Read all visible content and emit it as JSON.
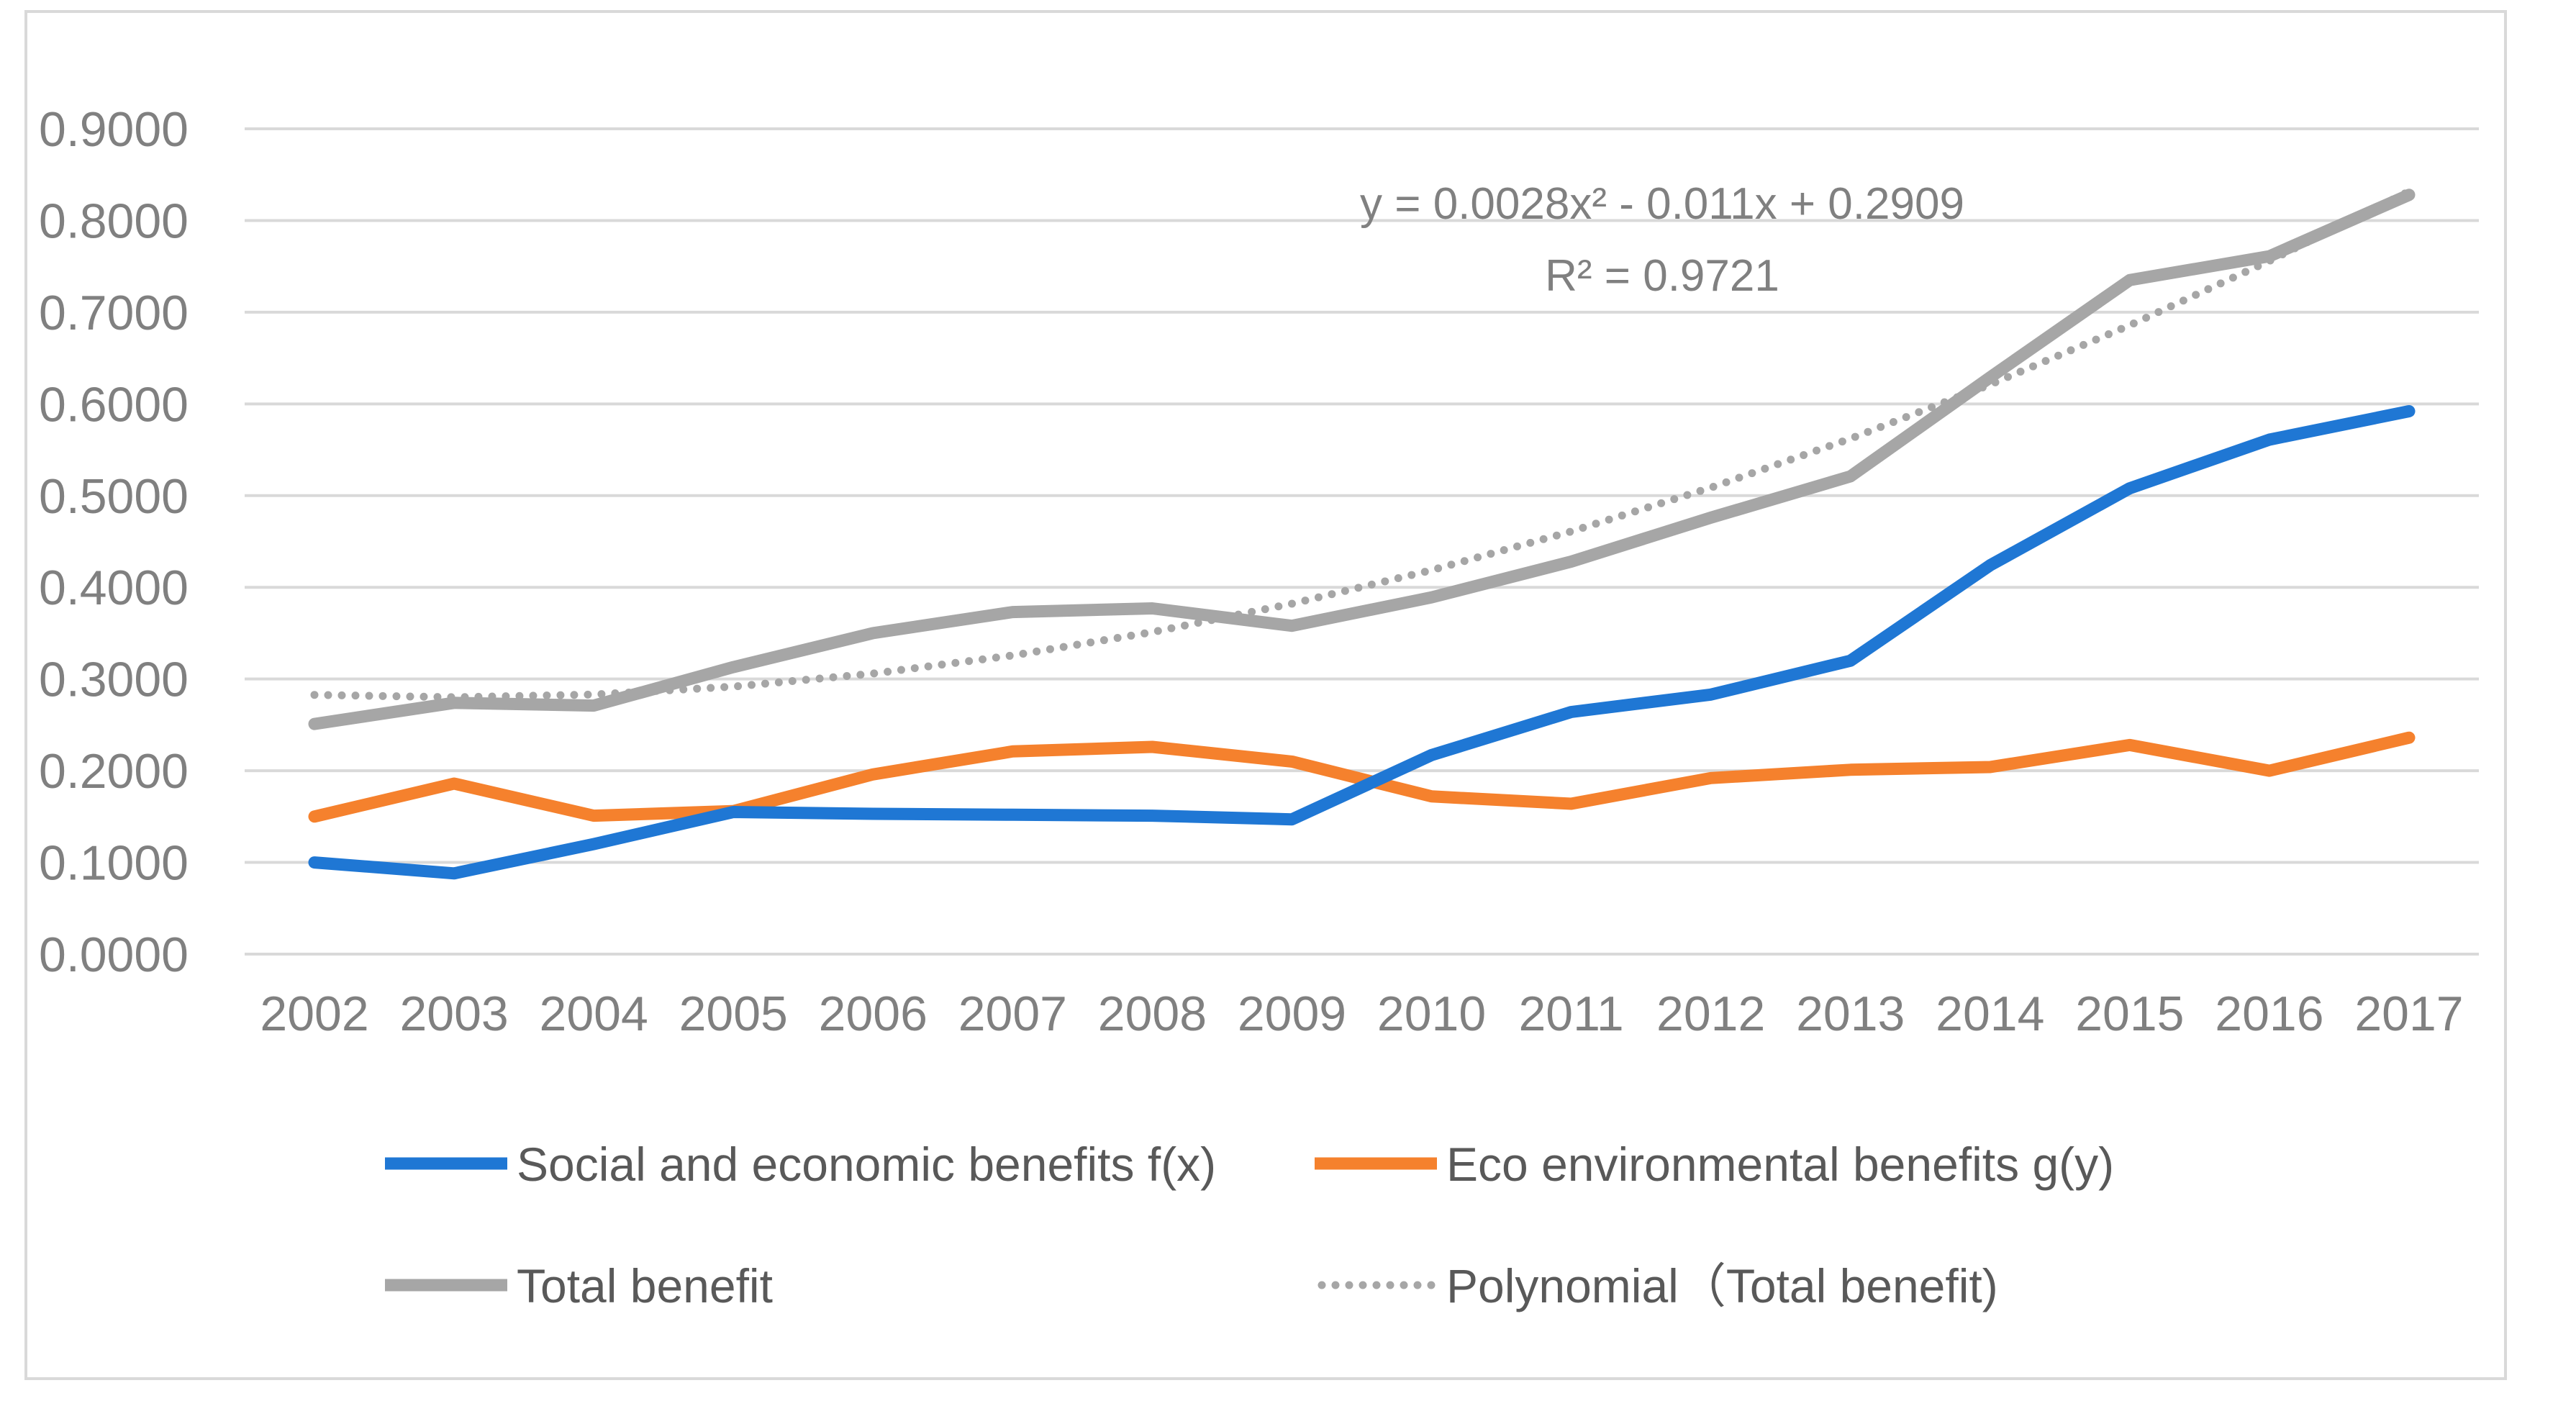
{
  "chart_data": {
    "type": "line",
    "categories": [
      "2002",
      "2003",
      "2004",
      "2005",
      "2006",
      "2007",
      "2008",
      "2009",
      "2010",
      "2011",
      "2012",
      "2013",
      "2014",
      "2015",
      "2016",
      "2017"
    ],
    "ylim": [
      0,
      0.9
    ],
    "yticks": [
      0,
      0.1,
      0.2,
      0.3,
      0.4,
      0.5,
      0.6,
      0.7,
      0.8,
      0.9
    ],
    "ytick_labels": [
      "0.0000",
      "0.1000",
      "0.2000",
      "0.3000",
      "0.4000",
      "0.5000",
      "0.6000",
      "0.7000",
      "0.8000",
      "0.9000"
    ],
    "grid": true,
    "series": [
      {
        "name": "Social and economic benefits  f(x)",
        "color": "#1f77d4",
        "style": "solid",
        "values": [
          0.1,
          0.088,
          0.12,
          0.155,
          0.153,
          0.152,
          0.151,
          0.147,
          0.217,
          0.264,
          0.283,
          0.32,
          0.424,
          0.508,
          0.561,
          0.592
        ]
      },
      {
        "name": "Eco environmental benefits  g(y)",
        "color": "#f5812d",
        "style": "solid",
        "values": [
          0.15,
          0.186,
          0.151,
          0.156,
          0.196,
          0.221,
          0.226,
          0.21,
          0.172,
          0.164,
          0.192,
          0.201,
          0.204,
          0.228,
          0.2,
          0.236
        ]
      },
      {
        "name": "Total benefit",
        "color": "#a6a6a6",
        "style": "solid",
        "values": [
          0.251,
          0.274,
          0.271,
          0.313,
          0.35,
          0.373,
          0.377,
          0.358,
          0.389,
          0.428,
          0.476,
          0.521,
          0.629,
          0.735,
          0.761,
          0.828
        ]
      },
      {
        "name": "Polynomial（Total benefit)",
        "color": "#a6a6a6",
        "style": "dotted",
        "values": [
          0.2827,
          0.2801,
          0.2831,
          0.2917,
          0.3059,
          0.3257,
          0.3511,
          0.3821,
          0.4187,
          0.4609,
          0.5087,
          0.5621,
          0.6211,
          0.6857,
          0.7559,
          0.8317
        ]
      }
    ],
    "annotation": {
      "equation": "y = 0.0028x² - 0.011x + 0.2909",
      "r_squared": "R² = 0.9721"
    },
    "legend_position": "bottom"
  }
}
